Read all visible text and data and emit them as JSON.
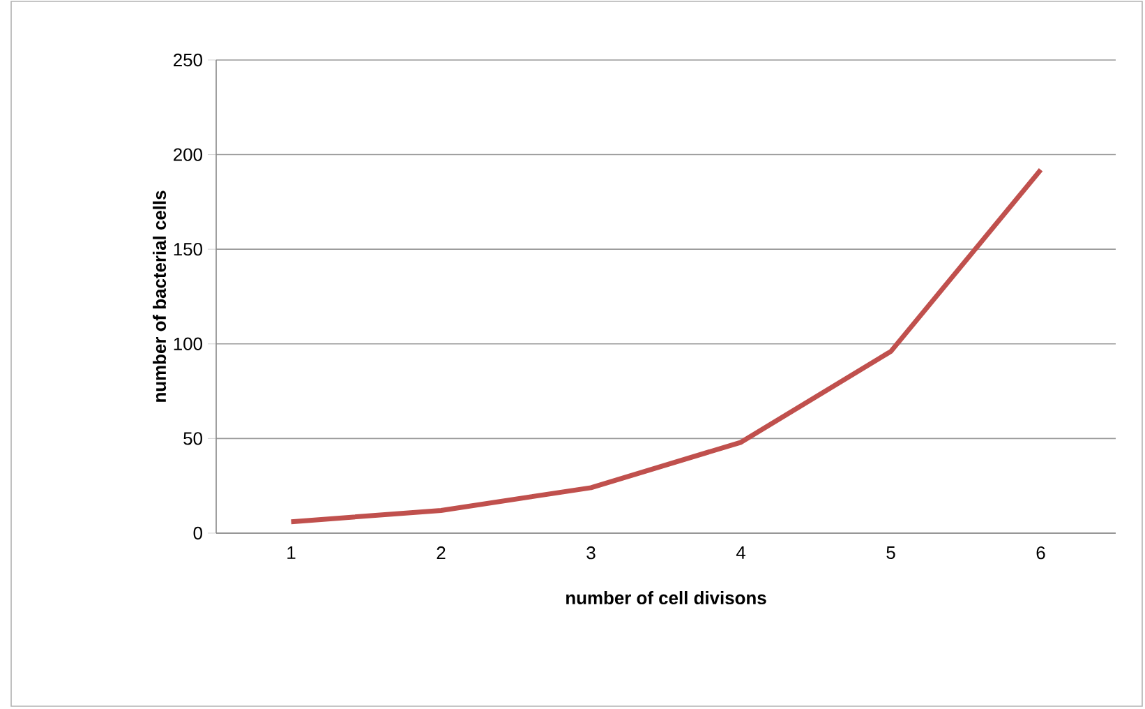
{
  "chart_data": {
    "type": "line",
    "xlabel": "number of cell divisons",
    "ylabel": "number of bacterial cells",
    "categories": [
      "1",
      "2",
      "3",
      "4",
      "5",
      "6"
    ],
    "values": [
      6,
      12,
      24,
      48,
      96,
      192
    ],
    "color": "#c0504d",
    "marker": "none",
    "line_style": "solid",
    "ylim": [
      0,
      250
    ],
    "yticks": [
      0,
      50,
      100,
      150,
      200,
      250
    ],
    "grid": "y"
  }
}
